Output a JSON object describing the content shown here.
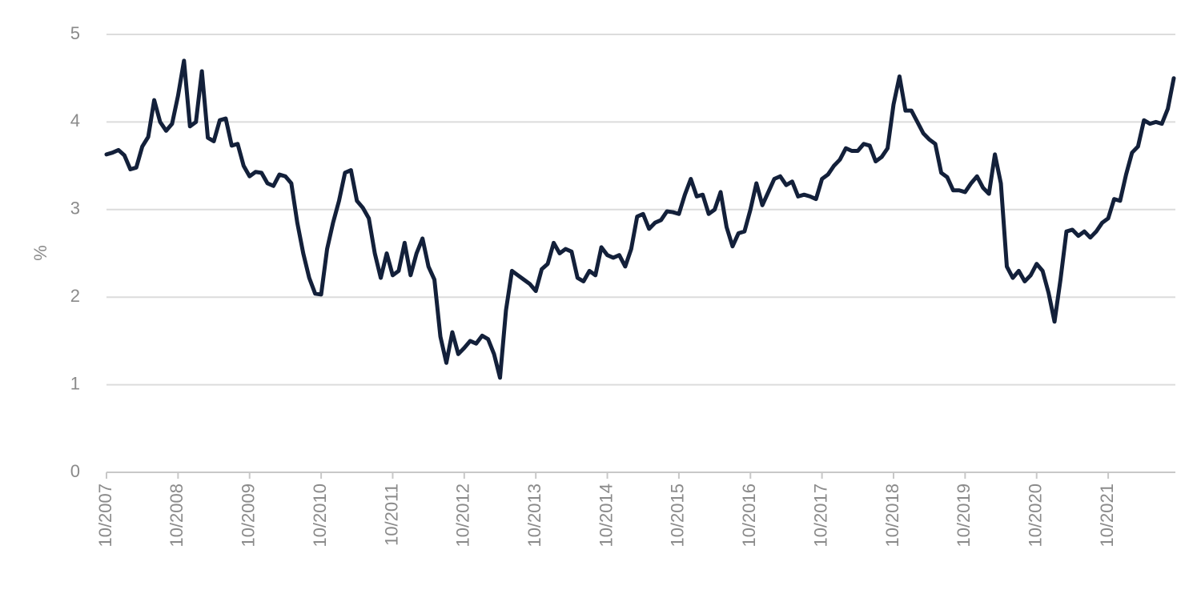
{
  "chart_data": {
    "type": "line",
    "y_label": "%",
    "categories": [
      "10/2007",
      null,
      null,
      null,
      null,
      null,
      null,
      null,
      null,
      null,
      null,
      null,
      "10/2008",
      null,
      null,
      null,
      null,
      null,
      null,
      null,
      null,
      null,
      null,
      null,
      "10/2009",
      null,
      null,
      null,
      null,
      null,
      null,
      null,
      null,
      null,
      null,
      null,
      "10/2010",
      null,
      null,
      null,
      null,
      null,
      null,
      null,
      null,
      null,
      null,
      null,
      "10/2011",
      null,
      null,
      null,
      null,
      null,
      null,
      null,
      null,
      null,
      null,
      null,
      "10/2012",
      null,
      null,
      null,
      null,
      null,
      null,
      null,
      null,
      null,
      null,
      null,
      "10/2013",
      null,
      null,
      null,
      null,
      null,
      null,
      null,
      null,
      null,
      null,
      null,
      "10/2014",
      null,
      null,
      null,
      null,
      null,
      null,
      null,
      null,
      null,
      null,
      null,
      "10/2015",
      null,
      null,
      null,
      null,
      null,
      null,
      null,
      null,
      null,
      null,
      null,
      "10/2016",
      null,
      null,
      null,
      null,
      null,
      null,
      null,
      null,
      null,
      null,
      null,
      "10/2017",
      null,
      null,
      null,
      null,
      null,
      null,
      null,
      null,
      null,
      null,
      null,
      "10/2018",
      null,
      null,
      null,
      null,
      null,
      null,
      null,
      null,
      null,
      null,
      null,
      "10/2019",
      null,
      null,
      null,
      null,
      null,
      null,
      null,
      null,
      null,
      null,
      null,
      "10/2020",
      null,
      null,
      null,
      null,
      null,
      null,
      null,
      null,
      null,
      null,
      null,
      "10/2021",
      null,
      null,
      null,
      null,
      null,
      null,
      null,
      null,
      null,
      null,
      null
    ],
    "values": [
      3.63,
      3.65,
      3.68,
      3.62,
      3.46,
      3.48,
      3.72,
      3.83,
      4.25,
      4.0,
      3.9,
      3.98,
      4.3,
      4.7,
      3.95,
      4.0,
      4.58,
      3.82,
      3.78,
      4.02,
      4.04,
      3.73,
      3.75,
      3.5,
      3.38,
      3.43,
      3.42,
      3.3,
      3.27,
      3.4,
      3.38,
      3.3,
      2.85,
      2.5,
      2.22,
      2.04,
      2.03,
      2.55,
      2.85,
      3.1,
      3.42,
      3.45,
      3.1,
      3.02,
      2.9,
      2.5,
      2.22,
      2.5,
      2.25,
      2.3,
      2.62,
      2.25,
      2.5,
      2.67,
      2.35,
      2.2,
      1.55,
      1.25,
      1.6,
      1.35,
      1.42,
      1.5,
      1.47,
      1.56,
      1.52,
      1.35,
      1.08,
      1.85,
      2.3,
      2.25,
      2.2,
      2.15,
      2.07,
      2.32,
      2.38,
      2.62,
      2.5,
      2.55,
      2.52,
      2.22,
      2.18,
      2.3,
      2.25,
      2.57,
      2.48,
      2.45,
      2.48,
      2.35,
      2.55,
      2.92,
      2.95,
      2.78,
      2.85,
      2.88,
      2.98,
      2.97,
      2.95,
      3.17,
      3.35,
      3.15,
      3.17,
      2.95,
      3.0,
      3.2,
      2.8,
      2.58,
      2.73,
      2.75,
      3.0,
      3.3,
      3.05,
      3.2,
      3.35,
      3.38,
      3.28,
      3.32,
      3.15,
      3.17,
      3.15,
      3.12,
      3.35,
      3.4,
      3.5,
      3.57,
      3.7,
      3.67,
      3.67,
      3.75,
      3.73,
      3.55,
      3.6,
      3.7,
      4.2,
      4.52,
      4.13,
      4.13,
      4.0,
      3.87,
      3.8,
      3.75,
      3.42,
      3.37,
      3.22,
      3.22,
      3.2,
      3.3,
      3.38,
      3.25,
      3.18,
      3.63,
      3.3,
      2.35,
      2.22,
      2.3,
      2.18,
      2.25,
      2.38,
      2.3,
      2.05,
      1.72,
      2.2,
      2.75,
      2.77,
      2.7,
      2.75,
      2.68,
      2.75,
      2.85,
      2.9,
      3.12,
      3.1,
      3.4,
      3.65,
      3.72,
      4.02,
      3.98,
      4.0,
      3.98,
      4.15,
      4.5
    ],
    "color": "#13203a",
    "ylim": [
      0,
      5
    ],
    "yticks": [
      0,
      1,
      2,
      3,
      4,
      5
    ],
    "grid": true
  }
}
